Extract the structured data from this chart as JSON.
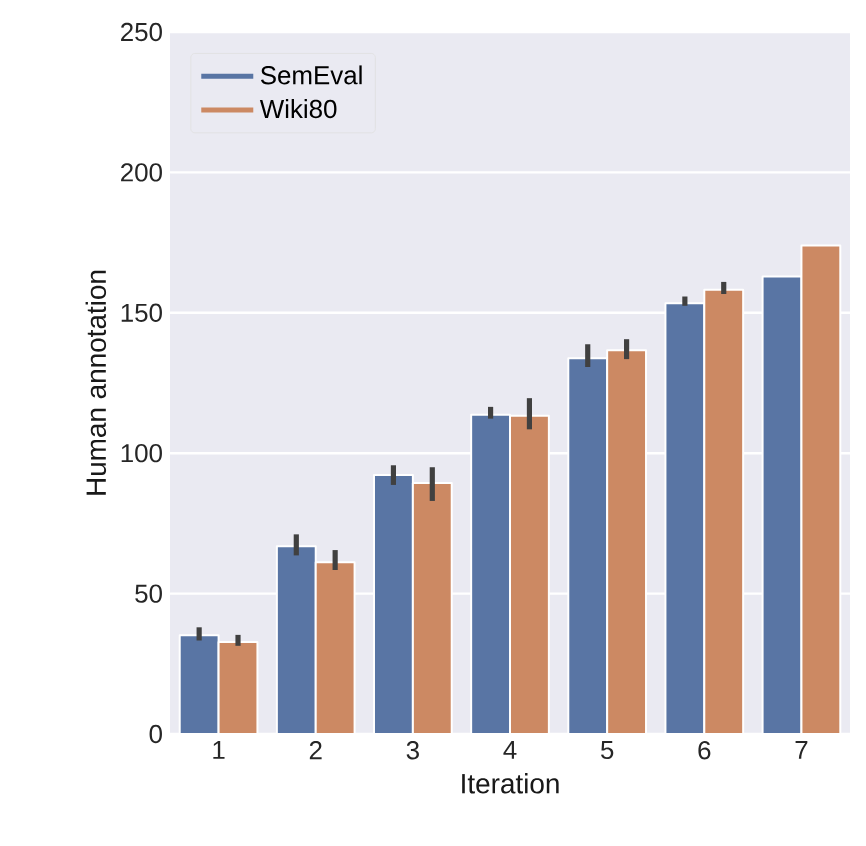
{
  "chart_data": {
    "type": "bar",
    "xlabel": "Iteration",
    "ylabel": "Human annotation",
    "categories": [
      "1",
      "2",
      "3",
      "4",
      "5",
      "6",
      "7"
    ],
    "series": [
      {
        "name": "SemEval",
        "color": "#5975a4",
        "values": [
          35.2,
          66.9,
          92.2,
          113.7,
          133.8,
          153.4,
          162.9
        ],
        "errors": [
          [
            33.3,
            38
          ],
          [
            63.6,
            71.1
          ],
          [
            88.7,
            95.7
          ],
          [
            112.3,
            116.5
          ],
          [
            130.7,
            138.8
          ],
          [
            152.5,
            155.8
          ],
          null
        ]
      },
      {
        "name": "Wiki80",
        "color": "#cc8963",
        "values": [
          32.8,
          61.2,
          89.4,
          113.3,
          136.7,
          158.2,
          174.0
        ],
        "errors": [
          [
            31.4,
            35.3
          ],
          [
            58.4,
            65.5
          ],
          [
            83,
            95
          ],
          [
            108.5,
            119.6
          ],
          [
            133.5,
            140.6
          ],
          [
            156.7,
            161
          ],
          null
        ]
      }
    ],
    "ylim": [
      0,
      250
    ],
    "yticks": [
      0,
      50,
      100,
      150,
      200,
      250
    ],
    "grid": "y",
    "legend": "top left"
  }
}
